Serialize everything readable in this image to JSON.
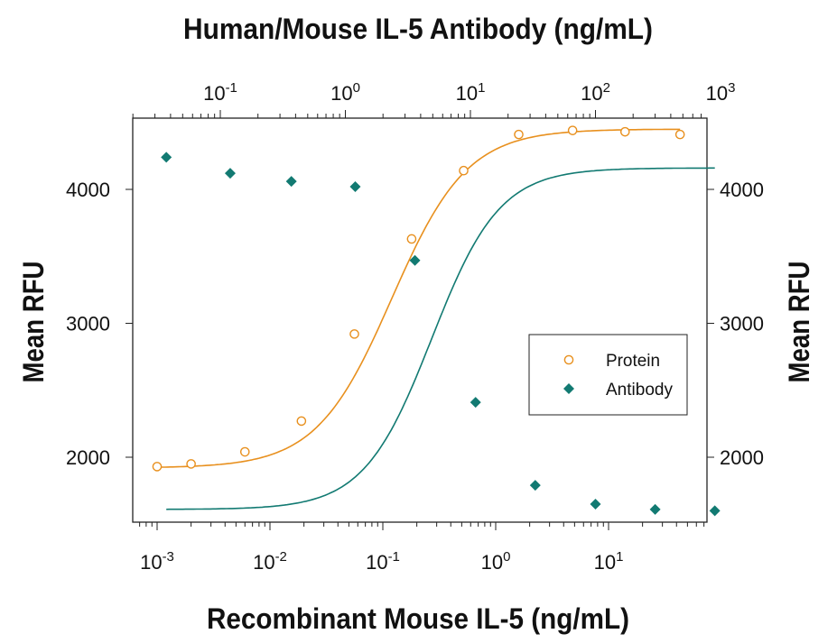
{
  "chart_data": {
    "type": "scatter",
    "title": "",
    "x_bottom": {
      "label": "Recombinant Mouse IL-5 (ng/mL)",
      "scale": "log",
      "range": [
        0.0005,
        100
      ],
      "tick_labels": [
        {
          "value": 0.001,
          "base": "10",
          "exp": "-3"
        },
        {
          "value": 0.01,
          "base": "10",
          "exp": "-2"
        },
        {
          "value": 0.1,
          "base": "10",
          "exp": "-1"
        },
        {
          "value": 1,
          "base": "10",
          "exp": "0"
        },
        {
          "value": 10,
          "base": "10",
          "exp": "1"
        }
      ]
    },
    "x_top": {
      "label": "Human/Mouse IL-5 Antibody (ng/mL)",
      "scale": "log",
      "range": [
        0.02,
        1000
      ],
      "tick_labels": [
        {
          "value": 0.1,
          "base": "10",
          "exp": "-1"
        },
        {
          "value": 1,
          "base": "10",
          "exp": "0"
        },
        {
          "value": 10,
          "base": "10",
          "exp": "1"
        },
        {
          "value": 100,
          "base": "10",
          "exp": "2"
        },
        {
          "value": 1000,
          "base": "10",
          "exp": "3"
        }
      ]
    },
    "y_left": {
      "label": "Mean RFU",
      "range": [
        1500,
        4500
      ],
      "ticks": [
        2000,
        3000,
        4000
      ]
    },
    "y_right": {
      "label": "Mean RFU",
      "range": [
        1500,
        4500
      ],
      "ticks": [
        2000,
        3000,
        4000
      ]
    },
    "legend": {
      "placement": "right",
      "entries": [
        "Protein",
        "Antibody"
      ]
    },
    "series": [
      {
        "name": "Protein",
        "axis": "bottom",
        "marker": "open-circle",
        "color": "#E8901E",
        "x": [
          0.001,
          0.002,
          0.006,
          0.019,
          0.056,
          0.18,
          0.52,
          1.6,
          4.8,
          14,
          43
        ],
        "y": [
          1930,
          1950,
          2040,
          2270,
          2920,
          3630,
          4140,
          4410,
          4440,
          4430,
          4410
        ],
        "fit": {
          "bottom": 1920,
          "top": 4450,
          "ec50": 0.12,
          "hill": 1.3
        }
      },
      {
        "name": "Antibody",
        "axis": "top",
        "marker": "filled-diamond",
        "color": "#127A72",
        "x": [
          0.037,
          0.12,
          0.37,
          1.2,
          3.6,
          11,
          33,
          100,
          300,
          900
        ],
        "y": [
          4240,
          4120,
          4060,
          4020,
          3470,
          2410,
          1790,
          1650,
          1610,
          1600
        ],
        "fit": {
          "bottom": 1610,
          "top": 4160,
          "ec50": 4.9,
          "hill": 1.6
        }
      }
    ]
  }
}
